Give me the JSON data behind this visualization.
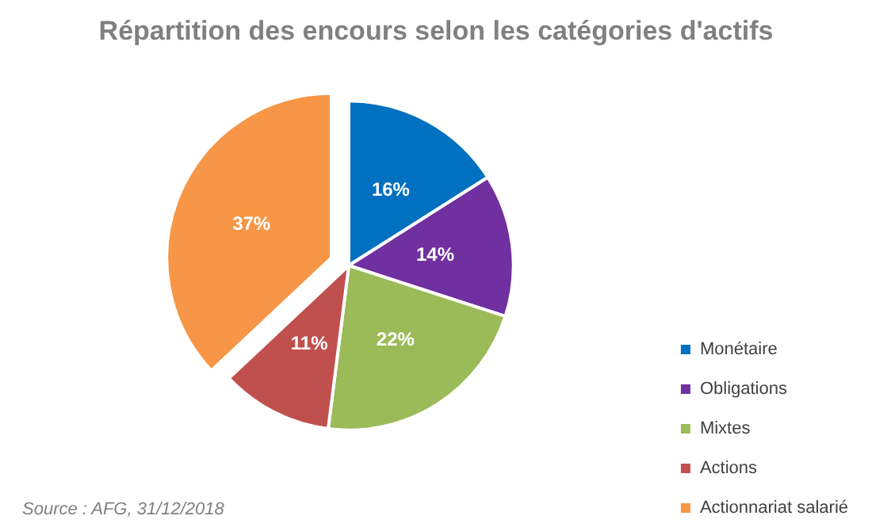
{
  "chart_data": {
    "type": "pie",
    "title": "Répartition des encours selon les catégories d'actifs",
    "categories": [
      "Monétaire",
      "Obligations",
      "Mixtes",
      "Actions",
      "Actionnariat salarié"
    ],
    "values": [
      16,
      14,
      22,
      11,
      37
    ],
    "colors": [
      "#0070c0",
      "#7030a0",
      "#9bbb59",
      "#c0504d",
      "#f79646"
    ],
    "value_labels": [
      "16%",
      "14%",
      "22%",
      "11%",
      "37%"
    ],
    "legend": "right",
    "annotations": [
      "Source : AFG, 31/12/2018"
    ]
  }
}
